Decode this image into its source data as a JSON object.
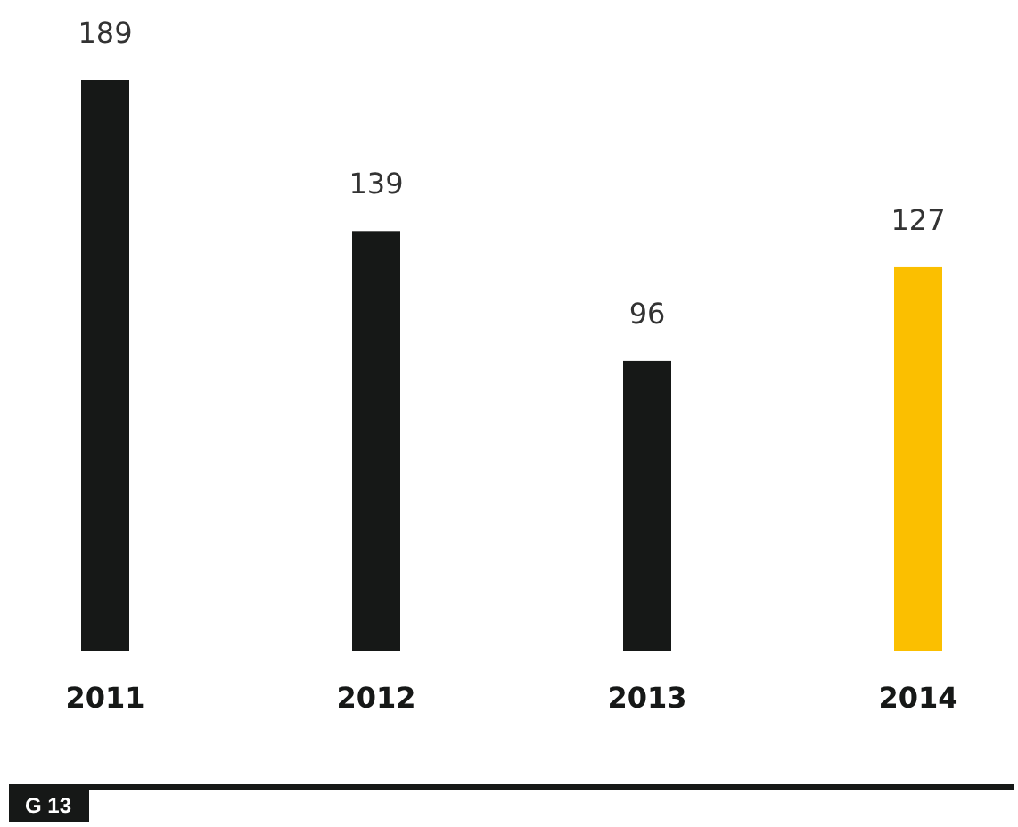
{
  "chart_data": {
    "type": "bar",
    "categories": [
      "2011",
      "2012",
      "2013",
      "2014"
    ],
    "values": [
      189,
      139,
      96,
      127
    ],
    "colors": [
      "#161817",
      "#161817",
      "#161817",
      "#fbbf00"
    ],
    "data_labels": true,
    "annotations": [
      "G 13"
    ]
  }
}
